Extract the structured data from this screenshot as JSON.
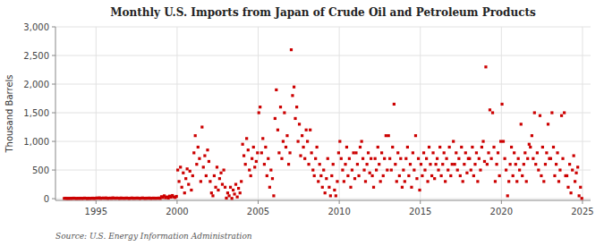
{
  "chart_data": {
    "type": "scatter",
    "title": "Monthly U.S. Imports from Japan of Crude Oil and Petroleum Products",
    "y_label": "Thousand Barrels",
    "annotations": [
      "Source: U.S. Energy Information Administration"
    ],
    "color": "#cc0000",
    "marker": "square",
    "grid": true,
    "xlim": [
      1992.5,
      2025.5
    ],
    "ylim": [
      -30,
      3000
    ],
    "xticks": [
      1995,
      2000,
      2005,
      2010,
      2015,
      2020,
      2025
    ],
    "yticks": [
      0,
      500,
      {
        "value": 1000,
        "label": "1,000"
      },
      {
        "value": 1500,
        "label": "1,500"
      },
      {
        "value": 2000,
        "label": "2,000"
      },
      {
        "value": 2500,
        "label": "2,500"
      },
      {
        "value": 3000,
        "label": "3,000"
      }
    ],
    "x": [
      1993.04,
      1993.12,
      1993.21,
      1993.29,
      1993.38,
      1993.46,
      1993.54,
      1993.62,
      1993.71,
      1993.79,
      1993.88,
      1993.96,
      1994.04,
      1994.12,
      1994.21,
      1994.29,
      1994.38,
      1994.46,
      1994.54,
      1994.62,
      1994.71,
      1994.79,
      1994.88,
      1994.96,
      1995.04,
      1995.12,
      1995.21,
      1995.29,
      1995.38,
      1995.46,
      1995.54,
      1995.62,
      1995.71,
      1995.79,
      1995.88,
      1995.96,
      1996.04,
      1996.12,
      1996.21,
      1996.29,
      1996.38,
      1996.46,
      1996.54,
      1996.62,
      1996.71,
      1996.79,
      1996.88,
      1996.96,
      1997.04,
      1997.12,
      1997.21,
      1997.29,
      1997.38,
      1997.46,
      1997.54,
      1997.62,
      1997.71,
      1997.79,
      1997.88,
      1997.96,
      1998.04,
      1998.12,
      1998.21,
      1998.29,
      1998.38,
      1998.46,
      1998.54,
      1998.62,
      1998.71,
      1998.79,
      1998.88,
      1998.96,
      1999.04,
      1999.12,
      1999.21,
      1999.29,
      1999.38,
      1999.46,
      1999.54,
      1999.62,
      1999.71,
      1999.79,
      1999.88,
      1999.96,
      2000.04,
      2000.12,
      2000.21,
      2000.29,
      2000.38,
      2000.46,
      2000.54,
      2000.62,
      2000.71,
      2000.79,
      2000.88,
      2000.96,
      2001.04,
      2001.12,
      2001.21,
      2001.29,
      2001.38,
      2001.46,
      2001.54,
      2001.62,
      2001.71,
      2001.79,
      2001.88,
      2001.96,
      2002.04,
      2002.12,
      2002.21,
      2002.29,
      2002.38,
      2002.46,
      2002.54,
      2002.62,
      2002.71,
      2002.79,
      2002.88,
      2002.96,
      2003.04,
      2003.12,
      2003.21,
      2003.29,
      2003.38,
      2003.46,
      2003.54,
      2003.62,
      2003.71,
      2003.79,
      2003.88,
      2003.96,
      2004.04,
      2004.12,
      2004.21,
      2004.29,
      2004.38,
      2004.46,
      2004.54,
      2004.62,
      2004.71,
      2004.79,
      2004.88,
      2004.96,
      2005.04,
      2005.12,
      2005.21,
      2005.29,
      2005.38,
      2005.46,
      2005.54,
      2005.62,
      2005.71,
      2005.79,
      2005.88,
      2005.96,
      2006.04,
      2006.12,
      2006.21,
      2006.29,
      2006.38,
      2006.46,
      2006.54,
      2006.62,
      2006.71,
      2006.79,
      2006.88,
      2006.96,
      2007.04,
      2007.12,
      2007.21,
      2007.29,
      2007.38,
      2007.46,
      2007.54,
      2007.62,
      2007.71,
      2007.79,
      2007.88,
      2007.96,
      2008.04,
      2008.12,
      2008.21,
      2008.29,
      2008.38,
      2008.46,
      2008.54,
      2008.62,
      2008.71,
      2008.79,
      2008.88,
      2008.96,
      2009.04,
      2009.12,
      2009.21,
      2009.29,
      2009.38,
      2009.46,
      2009.54,
      2009.62,
      2009.71,
      2009.79,
      2009.88,
      2009.96,
      2010.04,
      2010.12,
      2010.21,
      2010.29,
      2010.38,
      2010.46,
      2010.54,
      2010.62,
      2010.71,
      2010.79,
      2010.88,
      2010.96,
      2011.04,
      2011.12,
      2011.21,
      2011.29,
      2011.38,
      2011.46,
      2011.54,
      2011.62,
      2011.71,
      2011.79,
      2011.88,
      2011.96,
      2012.04,
      2012.12,
      2012.21,
      2012.29,
      2012.38,
      2012.46,
      2012.54,
      2012.62,
      2012.71,
      2012.79,
      2012.88,
      2012.96,
      2013.04,
      2013.12,
      2013.21,
      2013.29,
      2013.38,
      2013.46,
      2013.54,
      2013.62,
      2013.71,
      2013.79,
      2013.88,
      2013.96,
      2014.04,
      2014.12,
      2014.21,
      2014.29,
      2014.38,
      2014.46,
      2014.54,
      2014.62,
      2014.71,
      2014.79,
      2014.88,
      2014.96,
      2015.04,
      2015.12,
      2015.21,
      2015.29,
      2015.38,
      2015.46,
      2015.54,
      2015.62,
      2015.71,
      2015.79,
      2015.88,
      2015.96,
      2016.04,
      2016.12,
      2016.21,
      2016.29,
      2016.38,
      2016.46,
      2016.54,
      2016.62,
      2016.71,
      2016.79,
      2016.88,
      2016.96,
      2017.04,
      2017.12,
      2017.21,
      2017.29,
      2017.38,
      2017.46,
      2017.54,
      2017.62,
      2017.71,
      2017.79,
      2017.88,
      2017.96,
      2018.04,
      2018.12,
      2018.21,
      2018.29,
      2018.38,
      2018.46,
      2018.54,
      2018.62,
      2018.71,
      2018.79,
      2018.88,
      2018.96,
      2019.04,
      2019.12,
      2019.21,
      2019.29,
      2019.38,
      2019.46,
      2019.54,
      2019.62,
      2019.71,
      2019.79,
      2019.88,
      2019.96,
      2020.04,
      2020.12,
      2020.21,
      2020.29,
      2020.38,
      2020.46,
      2020.54,
      2020.62,
      2020.71,
      2020.79,
      2020.88,
      2020.96,
      2021.04,
      2021.12,
      2021.21,
      2021.29,
      2021.38,
      2021.46,
      2021.54,
      2021.62,
      2021.71,
      2021.79,
      2021.88,
      2021.96,
      2022.04,
      2022.12,
      2022.21,
      2022.29,
      2022.38,
      2022.46,
      2022.54,
      2022.62,
      2022.71,
      2022.79,
      2022.88,
      2022.96,
      2023.04,
      2023.12,
      2023.21,
      2023.29,
      2023.38,
      2023.46,
      2023.54,
      2023.62,
      2023.71,
      2023.79,
      2023.88,
      2023.96,
      2024.04,
      2024.12,
      2024.21,
      2024.29,
      2024.38,
      2024.46,
      2024.54,
      2024.62,
      2024.71,
      2024.79,
      2024.88,
      2024.96
    ],
    "values": [
      5,
      8,
      3,
      6,
      4,
      7,
      5,
      9,
      6,
      4,
      7,
      5,
      8,
      6,
      5,
      10,
      7,
      3,
      8,
      5,
      6,
      9,
      4,
      7,
      12,
      8,
      15,
      6,
      9,
      11,
      7,
      13,
      5,
      8,
      10,
      6,
      14,
      9,
      7,
      11,
      8,
      5,
      12,
      7,
      9,
      6,
      11,
      8,
      5,
      8,
      12,
      6,
      9,
      7,
      11,
      8,
      5,
      9,
      12,
      7,
      6,
      9,
      7,
      11,
      5,
      8,
      10,
      6,
      9,
      7,
      11,
      5,
      35,
      20,
      50,
      15,
      30,
      10,
      45,
      25,
      55,
      30,
      20,
      40,
      500,
      300,
      550,
      200,
      450,
      100,
      350,
      520,
      250,
      480,
      150,
      400,
      800,
      1100,
      600,
      900,
      700,
      300,
      1250,
      550,
      750,
      400,
      850,
      650,
      300,
      100,
      50,
      400,
      200,
      550,
      150,
      350,
      450,
      250,
      500,
      200,
      10,
      100,
      50,
      200,
      5,
      150,
      80,
      250,
      30,
      180,
      100,
      300,
      950,
      750,
      600,
      1050,
      850,
      500,
      400,
      700,
      900,
      550,
      650,
      800,
      1500,
      1600,
      800,
      1050,
      600,
      900,
      400,
      700,
      200,
      500,
      350,
      50,
      1400,
      1900,
      1200,
      800,
      1600,
      700,
      1000,
      1500,
      900,
      1100,
      600,
      800,
      2600,
      1800,
      1950,
      1400,
      1600,
      1000,
      1300,
      750,
      1100,
      900,
      700,
      1200,
      1000,
      600,
      1200,
      800,
      500,
      400,
      700,
      900,
      300,
      600,
      400,
      200,
      500,
      100,
      350,
      700,
      200,
      50,
      400,
      600,
      150,
      50,
      300,
      800,
      1000,
      700,
      500,
      300,
      600,
      900,
      400,
      700,
      200,
      500,
      800,
      350,
      800,
      600,
      400,
      900,
      1000,
      700,
      500,
      300,
      600,
      800,
      450,
      700,
      400,
      200,
      700,
      500,
      900,
      600,
      300,
      800,
      400,
      700,
      1100,
      500,
      1100,
      700,
      500,
      900,
      1650,
      600,
      300,
      800,
      400,
      700,
      200,
      500,
      300,
      700,
      900,
      400,
      600,
      200,
      800,
      500,
      1100,
      350,
      700,
      150,
      600,
      400,
      800,
      500,
      700,
      300,
      900,
      600,
      400,
      800,
      350,
      600,
      700,
      500,
      900,
      400,
      600,
      800,
      300,
      700,
      500,
      900,
      400,
      600,
      1000,
      600,
      800,
      500,
      700,
      400,
      900,
      300,
      600,
      800,
      450,
      700,
      700,
      500,
      900,
      400,
      600,
      800,
      300,
      700,
      500,
      900,
      1000,
      650,
      2300,
      600,
      800,
      1550,
      700,
      1500,
      900,
      300,
      600,
      800,
      400,
      1000,
      1650,
      1000,
      700,
      500,
      50,
      300,
      600,
      900,
      400,
      800,
      600,
      300,
      700,
      500,
      1300,
      400,
      600,
      800,
      300,
      700,
      950,
      900,
      1100,
      700,
      1500,
      600,
      800,
      500,
      1450,
      400,
      900,
      300,
      600,
      800,
      1300,
      700,
      700,
      1500,
      900,
      400,
      600,
      800,
      300,
      500,
      1450,
      700,
      1500,
      400,
      400,
      200,
      600,
      100,
      500,
      750,
      300,
      450,
      550,
      50,
      200,
      5
    ]
  }
}
